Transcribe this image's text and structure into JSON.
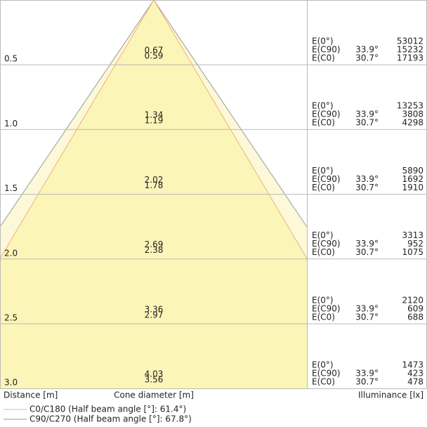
{
  "footer": {
    "distance_label": "Distance [m]",
    "diameter_label": "Cone diameter [m]",
    "illuminance_label": "Illuminance [lx]"
  },
  "legend": [
    {
      "label": "C0/C180 (Half beam angle [°]: 61.4°)"
    },
    {
      "label": "C90/C270 (Half beam angle [°]: 67.8°)"
    }
  ],
  "rows": [
    {
      "distance": "0.5",
      "diameters": [
        "0.67",
        "0.59"
      ],
      "illuminance": [
        {
          "label": "E(0°)",
          "value": "53012"
        },
        {
          "label": "E(C90)",
          "angle": "33.9°",
          "value": "15232"
        },
        {
          "label": "E(C0)",
          "angle": "30.7°",
          "value": "17193"
        }
      ]
    },
    {
      "distance": "1.0",
      "diameters": [
        "1.34",
        "1.19"
      ],
      "illuminance": [
        {
          "label": "E(0°)",
          "value": "13253"
        },
        {
          "label": "E(C90)",
          "angle": "33.9°",
          "value": "3808"
        },
        {
          "label": "E(C0)",
          "angle": "30.7°",
          "value": "4298"
        }
      ]
    },
    {
      "distance": "1.5",
      "diameters": [
        "2.02",
        "1.78"
      ],
      "illuminance": [
        {
          "label": "E(0°)",
          "value": "5890"
        },
        {
          "label": "E(C90)",
          "angle": "33.9°",
          "value": "1692"
        },
        {
          "label": "E(C0)",
          "angle": "30.7°",
          "value": "1910"
        }
      ]
    },
    {
      "distance": "2.0",
      "diameters": [
        "2.69",
        "2.38"
      ],
      "illuminance": [
        {
          "label": "E(0°)",
          "value": "3313"
        },
        {
          "label": "E(C90)",
          "angle": "33.9°",
          "value": "952"
        },
        {
          "label": "E(C0)",
          "angle": "30.7°",
          "value": "1075"
        }
      ]
    },
    {
      "distance": "2.5",
      "diameters": [
        "3.36",
        "2.97"
      ],
      "illuminance": [
        {
          "label": "E(0°)",
          "value": "2120"
        },
        {
          "label": "E(C90)",
          "angle": "33.9°",
          "value": "609"
        },
        {
          "label": "E(C0)",
          "angle": "30.7°",
          "value": "688"
        }
      ]
    },
    {
      "distance": "3.0",
      "diameters": [
        "4.03",
        "3.56"
      ],
      "illuminance": [
        {
          "label": "E(0°)",
          "value": "1473"
        },
        {
          "label": "E(C90)",
          "angle": "33.9°",
          "value": "423"
        },
        {
          "label": "E(C0)",
          "angle": "30.7°",
          "value": "478"
        }
      ]
    }
  ]
}
